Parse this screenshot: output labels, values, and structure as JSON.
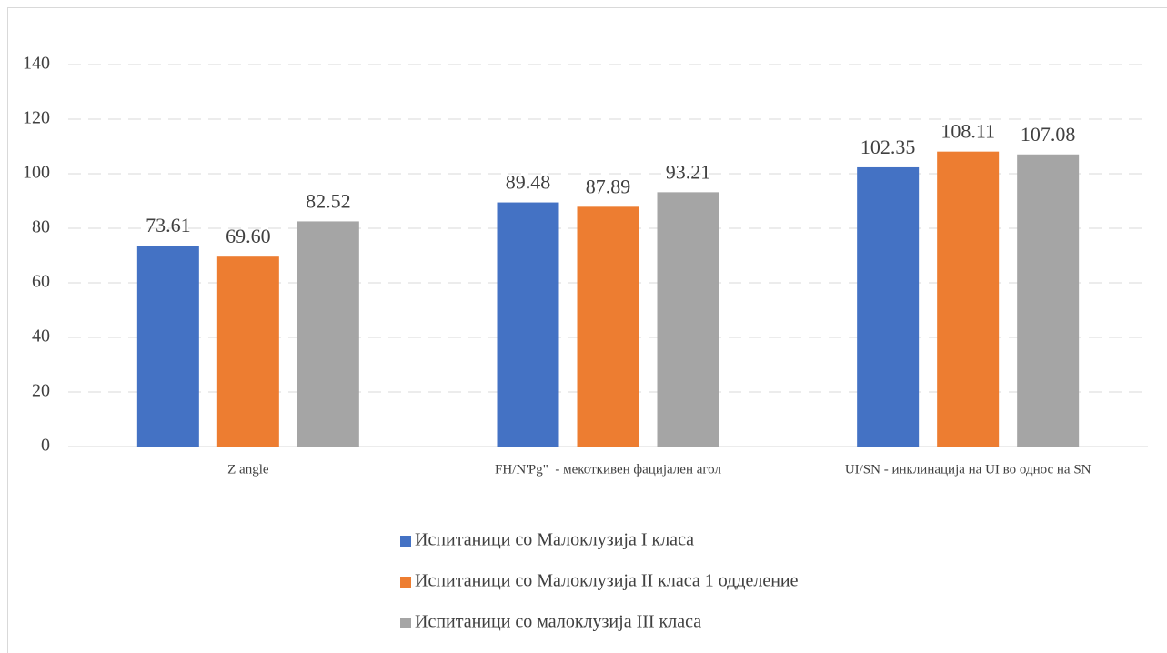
{
  "chart_data": {
    "type": "bar",
    "categories": [
      "Z angle",
      "FH/N'Pg\"  - мекоткивен фацијален агол",
      "UI/SN - инклинација на UI во однос на SN"
    ],
    "series": [
      {
        "name": "Испитаници со Малоклузија I класа",
        "color": "#4472c4",
        "values": [
          73.61,
          89.48,
          102.35
        ],
        "value_labels": [
          "73.61",
          "89.48",
          "102.35"
        ]
      },
      {
        "name": "Испитаници со Малоклузија II класа 1 одделение",
        "color": "#ed7d31",
        "values": [
          69.6,
          87.89,
          108.11
        ],
        "value_labels": [
          "69.60",
          "87.89",
          "108.11"
        ]
      },
      {
        "name": "Испитаници со малоклузија III класа",
        "color": "#a5a5a5",
        "values": [
          82.52,
          93.21,
          107.08
        ],
        "value_labels": [
          "82.52",
          "93.21",
          "107.08"
        ]
      }
    ],
    "ylim": [
      0,
      140
    ],
    "yticks": [
      0,
      20,
      40,
      60,
      80,
      100,
      120,
      140
    ],
    "grid": true,
    "legend": "bottom"
  }
}
